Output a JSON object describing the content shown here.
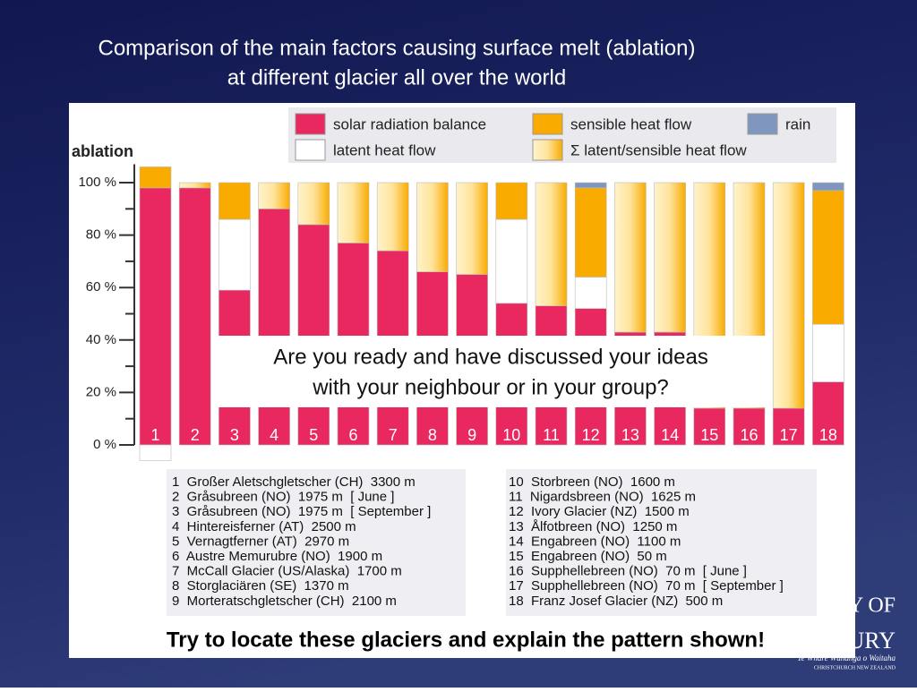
{
  "slide": {
    "title_lines": [
      "Comparison of the main factors causing surface melt (ablation)",
      "at different glacier all over the world"
    ],
    "prompt_lines": [
      "Are you ready and have discussed your ideas",
      "with your neighbour or in your group?"
    ],
    "footer": "Try to locate these glaciers and explain the pattern shown!",
    "logo_lines": [
      "TY OF",
      "BURY",
      "Te Whare Wānanga o Waitaha",
      "CHRISTCHURCH NEW ZEALAND"
    ]
  },
  "glacier_list": {
    "left": [
      "1  Großer Aletschgletscher (CH)  3300 m",
      "2  Gråsubreen (NO)  1975 m  [ June ]",
      "3  Gråsubreen (NO)  1975 m  [ September ]",
      "4  Hintereisferner (AT)  2500 m",
      "5  Vernagtferner (AT)  2970 m",
      "6  Austre Memurubre (NO)  1900 m",
      "7  McCall Glacier (US/Alaska)  1700 m",
      "8  Storglaciären (SE)  1370 m",
      "9  Morteratschgletscher (CH)  2100 m"
    ],
    "right": [
      "10  Storbreen (NO)  1600 m",
      "11  Nigardsbreen (NO)  1625 m",
      "12  Ivory Glacier (NZ)  1500 m",
      "13  Ålfotbreen (NO)  1250 m",
      "14  Engabreen (NO)  1100 m",
      "15  Engabreen (NO)  50 m",
      "16  Supphellebreen (NO)  70 m  [ June ]",
      "17  Supphellebreen (NO)  70 m  [ September ]",
      "18  Franz Josef Glacier (NZ)  500 m"
    ]
  },
  "chart_data": {
    "type": "stacked_bar",
    "y_label": "ablation",
    "categories": [
      "1",
      "2",
      "3",
      "4",
      "5",
      "6",
      "7",
      "8",
      "9",
      "10",
      "11",
      "12",
      "13",
      "14",
      "15",
      "16",
      "17",
      "18"
    ],
    "series": [
      {
        "name": "solar radiation balance",
        "color": "#e8285f",
        "values": [
          98,
          98,
          59,
          90,
          84,
          77,
          74,
          66,
          65,
          54,
          53,
          52,
          43,
          43,
          14,
          14,
          14,
          24
        ]
      },
      {
        "name": "latent heat flow",
        "color": "#ffffff",
        "values": [
          -6,
          null,
          27,
          null,
          null,
          null,
          null,
          null,
          null,
          32,
          null,
          12,
          null,
          null,
          null,
          null,
          null,
          22
        ]
      },
      {
        "name": "sensible heat flow",
        "color": "#f9ab00",
        "values": [
          8,
          null,
          14,
          null,
          null,
          null,
          null,
          null,
          null,
          14,
          null,
          34,
          null,
          null,
          null,
          null,
          null,
          51
        ]
      },
      {
        "name": "Σ  latent/sensible heat flow",
        "color": "#f9ab00",
        "fill_style": "gradient",
        "values": [
          null,
          2,
          null,
          10,
          16,
          23,
          26,
          34,
          35,
          null,
          47,
          null,
          57,
          57,
          86,
          86,
          86,
          null
        ]
      },
      {
        "name": "rain",
        "color": "#7f97bf",
        "values": [
          null,
          null,
          null,
          null,
          null,
          null,
          null,
          null,
          null,
          null,
          null,
          2,
          null,
          null,
          null,
          null,
          null,
          3
        ]
      }
    ],
    "ylim": [
      -10,
      107
    ],
    "yticks": [
      {
        "value": 0,
        "label": "0 %"
      },
      {
        "value": 20,
        "label": "20 %"
      },
      {
        "value": 40,
        "label": "40 %"
      },
      {
        "value": 60,
        "label": "60 %"
      },
      {
        "value": 80,
        "label": "80 %"
      },
      {
        "value": 100,
        "label": "100 %"
      }
    ],
    "minor_yticks": [
      10,
      30,
      50,
      70,
      90
    ]
  }
}
